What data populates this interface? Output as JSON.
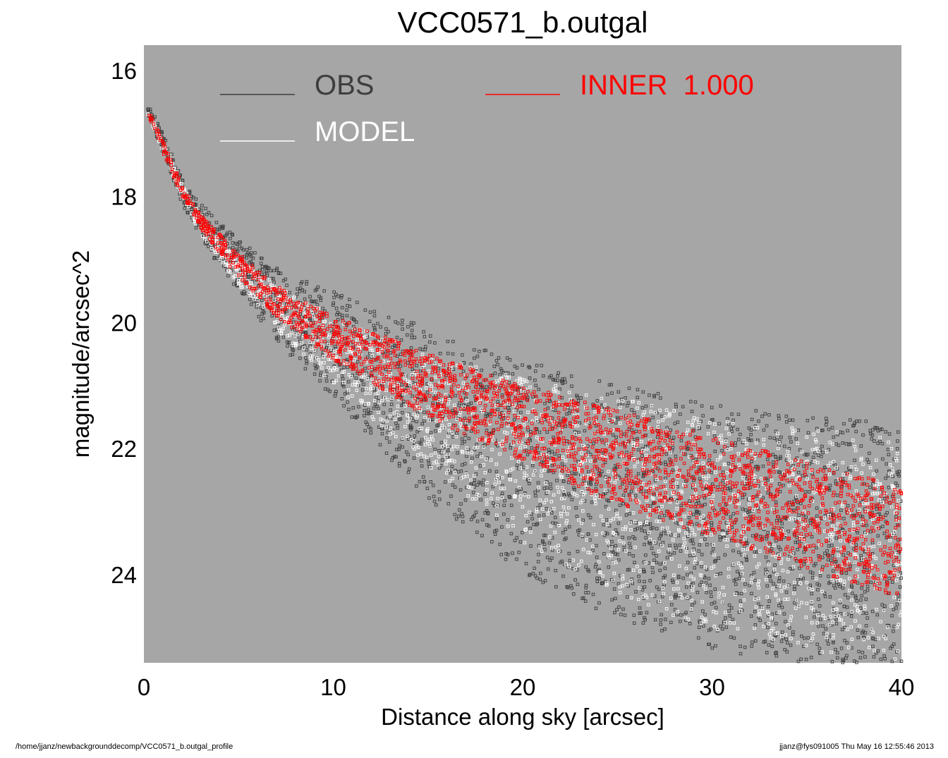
{
  "colors": {
    "background": "#ffffff",
    "plot_area": "#a6a6a6",
    "obs": "#3d3d3d",
    "model": "#ffffff",
    "inner": "#ff0000"
  },
  "footer": {
    "left": "/home/jjanz/newbackgrounddecomp/VCC0571_b.outgal_profile",
    "right": "jjanz@fys091005  Thu May 16 12:55:46 2013"
  },
  "chart_data": {
    "type": "scatter",
    "title": "VCC0571_b.outgal",
    "xlabel": "Distance along sky [arcsec]",
    "ylabel": "magnitude/arcsec^2",
    "xlim": [
      0,
      40
    ],
    "ylim": [
      25.4,
      15.6
    ],
    "y_inverted": true,
    "xticks": [
      0,
      10,
      20,
      30,
      40
    ],
    "yticks": [
      16,
      18,
      20,
      22,
      24
    ],
    "grid": false,
    "legend_position": "top-left inside",
    "series": [
      {
        "name": "OBS",
        "color": "#3d3d3d",
        "marker": "open-square",
        "envelope": {
          "x": [
            0.2,
            1,
            2,
            3,
            5,
            7,
            10,
            15,
            20,
            25,
            30,
            35,
            40
          ],
          "y_upper": [
            16.5,
            17.0,
            17.7,
            18.1,
            18.7,
            19.1,
            19.5,
            20.1,
            20.6,
            21.0,
            21.3,
            21.5,
            21.6
          ],
          "y_lower": [
            16.7,
            17.3,
            18.1,
            18.7,
            19.5,
            20.3,
            21.2,
            22.8,
            24.0,
            24.7,
            25.2,
            25.4,
            25.4
          ]
        }
      },
      {
        "name": "MODEL",
        "color": "#ffffff",
        "marker": "open-square",
        "envelope": {
          "x": [
            0.2,
            1,
            2,
            3,
            5,
            7,
            10,
            15,
            20,
            25,
            30,
            35,
            40
          ],
          "y_upper": [
            16.6,
            17.1,
            17.8,
            18.3,
            19.0,
            19.4,
            19.9,
            20.5,
            20.9,
            21.2,
            21.5,
            21.7,
            21.8
          ],
          "y_lower": [
            16.7,
            17.3,
            18.0,
            18.6,
            19.4,
            20.1,
            21.0,
            22.3,
            23.5,
            24.3,
            24.9,
            25.2,
            25.4
          ]
        }
      },
      {
        "name": "INNER  1.000",
        "color": "#ff0000",
        "marker": "open-square",
        "envelope": {
          "x": [
            0.2,
            1,
            2,
            3,
            5,
            7,
            10,
            15,
            20,
            25,
            30,
            35,
            40
          ],
          "y_upper": [
            16.6,
            17.1,
            17.8,
            18.3,
            18.9,
            19.4,
            19.9,
            20.5,
            21.0,
            21.4,
            21.8,
            22.2,
            22.6
          ],
          "y_lower": [
            16.7,
            17.3,
            18.0,
            18.5,
            19.3,
            19.9,
            20.6,
            21.5,
            22.2,
            22.9,
            23.4,
            23.9,
            24.4
          ]
        }
      }
    ]
  }
}
